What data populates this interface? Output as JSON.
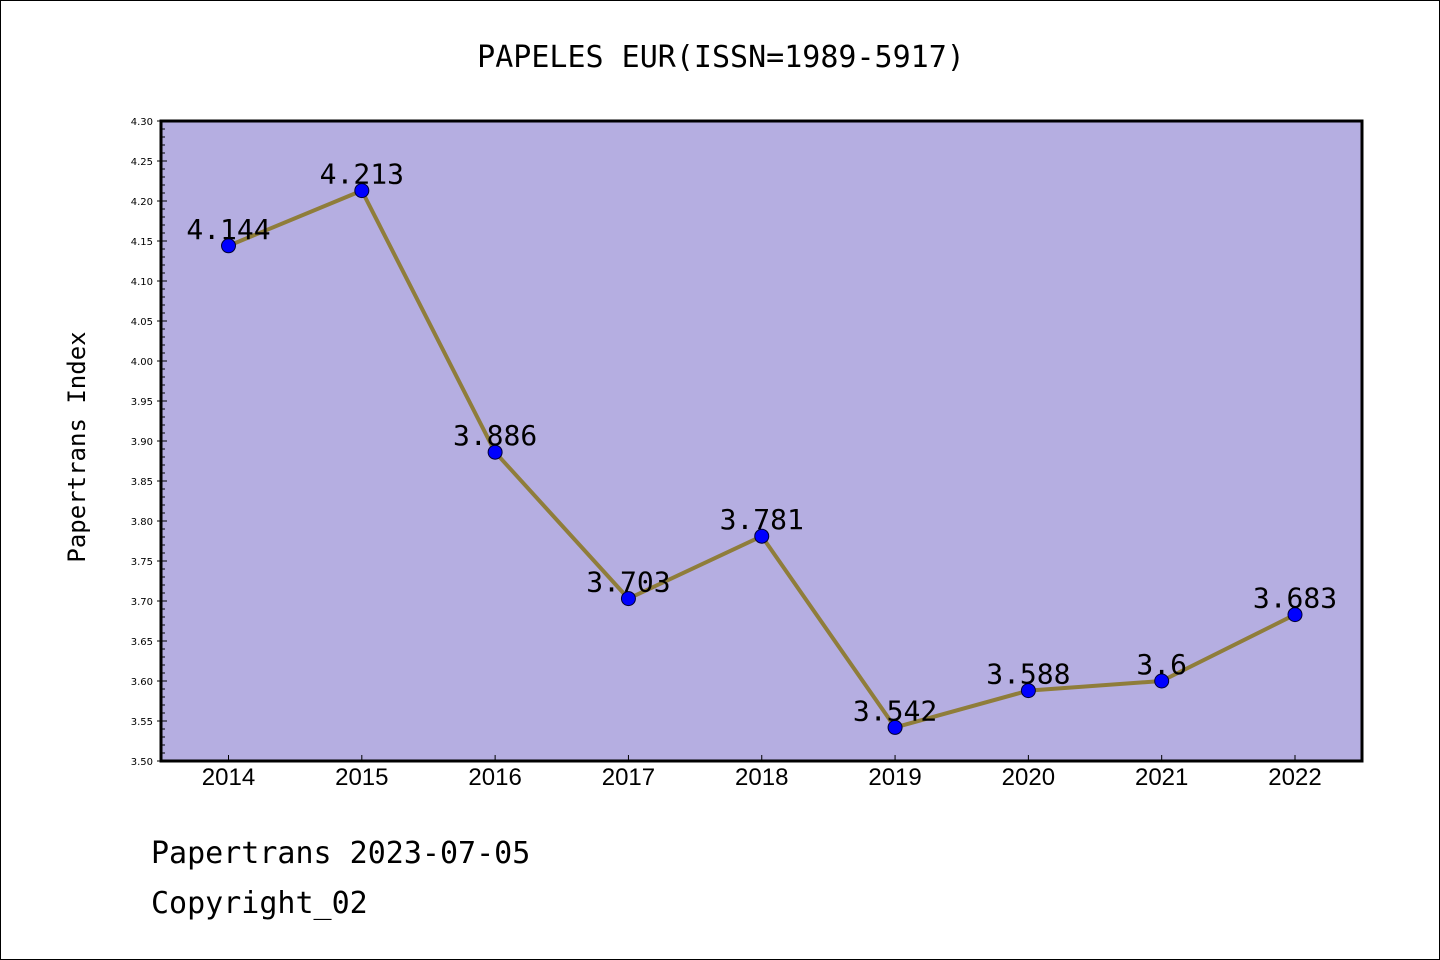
{
  "chart_data": {
    "type": "line",
    "title": "PAPELES EUR(ISSN=1989-5917)",
    "xlabel": "",
    "ylabel": "Papertrans Index",
    "categories": [
      "2014",
      "2015",
      "2016",
      "2017",
      "2018",
      "2019",
      "2020",
      "2021",
      "2022"
    ],
    "series": [
      {
        "values": [
          4.144,
          4.213,
          3.886,
          3.703,
          3.781,
          3.542,
          3.588,
          3.6,
          3.683
        ],
        "labels": [
          "4.144",
          "4.213",
          "3.886",
          "3.703",
          "3.781",
          "3.542",
          "3.588",
          "3.6",
          "3.683"
        ]
      }
    ],
    "ylim": [
      3.5,
      4.3
    ],
    "yticks": [
      "3.50",
      "3.55",
      "3.60",
      "3.65",
      "3.70",
      "3.75",
      "3.80",
      "3.85",
      "3.90",
      "3.95",
      "4.00",
      "4.05",
      "4.10",
      "4.15",
      "4.20",
      "4.25",
      "4.30"
    ],
    "grid": false,
    "legend": "none",
    "colors": {
      "plot_background": "#b5aee1",
      "line": "#8f7d3a",
      "marker": "#0000ff",
      "axis": "#000000"
    }
  },
  "footer": {
    "date_line": "Papertrans 2023-07-05",
    "copyright_line": "Copyright_02"
  }
}
